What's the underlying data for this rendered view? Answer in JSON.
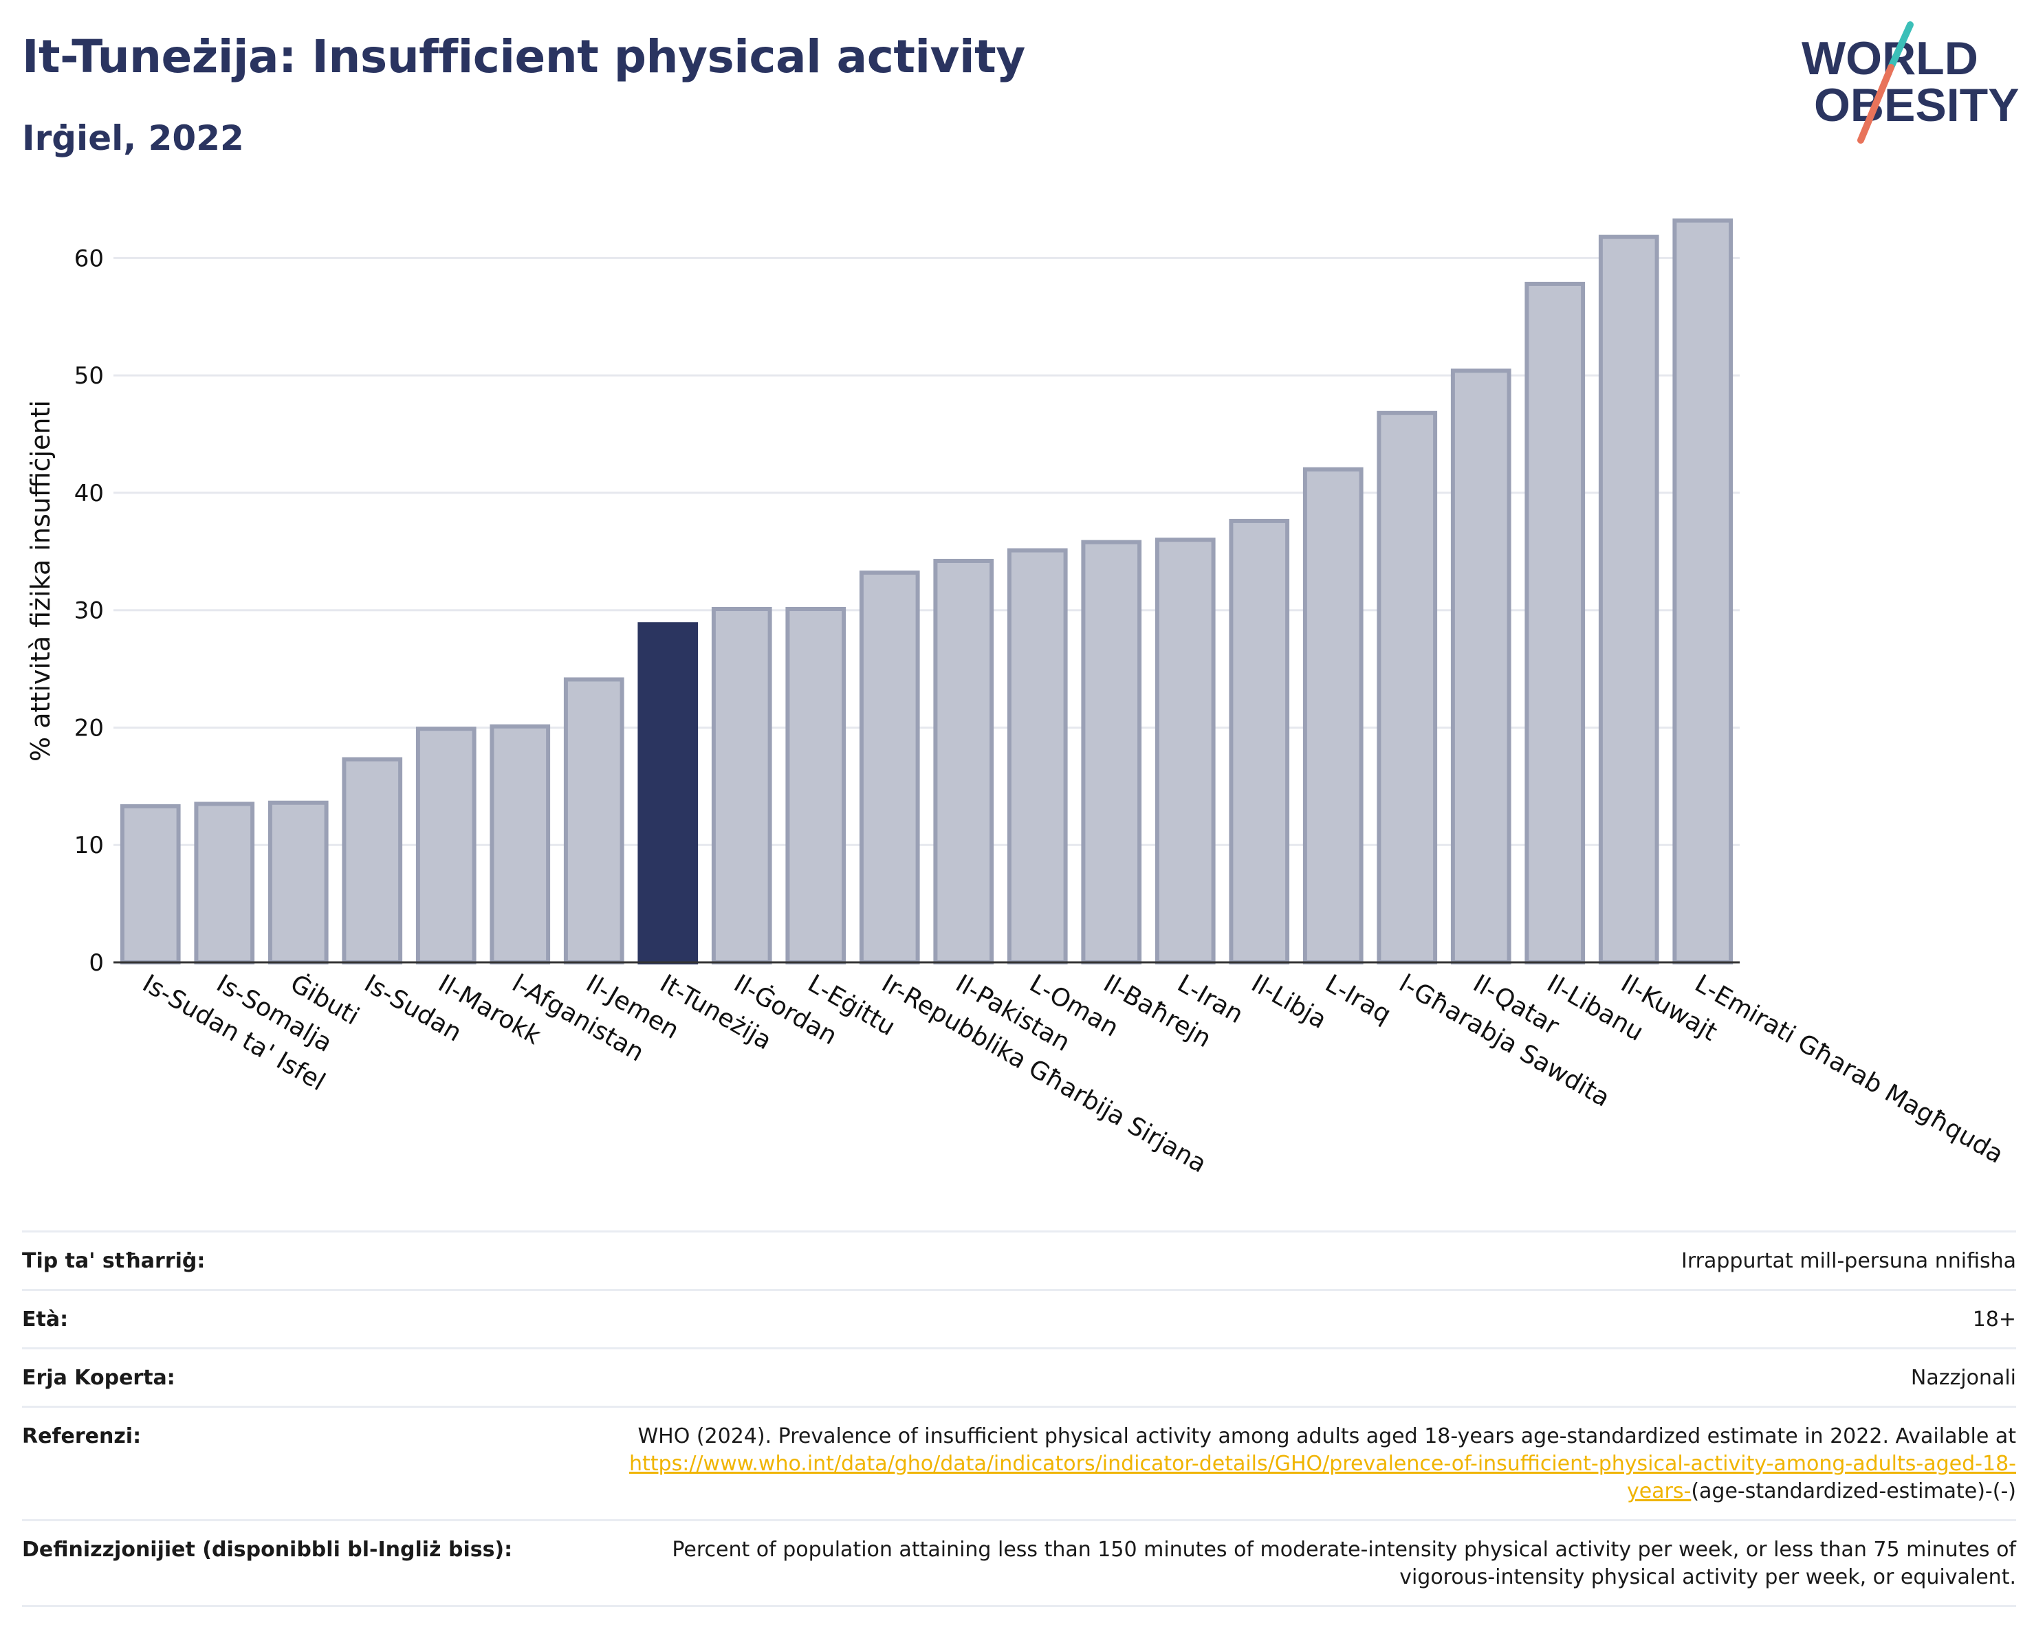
{
  "header": {
    "title": "It-Tuneżija: Insufficient physical activity",
    "subtitle": "Irġiel, 2022",
    "logo_line1": "WORLD",
    "logo_line2": "OBESITY"
  },
  "colors": {
    "highlight": "#2b3560",
    "bar": "#bfc3d0",
    "bar_edge": "#9aa0b5",
    "logo_navy": "#2b3560",
    "logo_teal": "#3bbfb8",
    "logo_coral": "#e8735a",
    "link": "#f0b400"
  },
  "chart_data": {
    "type": "bar",
    "ylabel": "% attività fiżika insuffiċjenti",
    "xlabel": "",
    "ylim": [
      0,
      65
    ],
    "yticks": [
      0,
      10,
      20,
      30,
      40,
      50,
      60
    ],
    "grid": true,
    "highlight_category": "It-Tuneżija",
    "categories": [
      "Is-Sudan ta' Isfel",
      "Is-Somalja",
      "Ġibuti",
      "Is-Sudan",
      "Il-Marokk",
      "l-Afganistan",
      "Il-Jemen",
      "It-Tuneżija",
      "Il-Ġordan",
      "L-Eġittu",
      "Ir-Repubblika Għarbija Sirjana",
      "Il-Pakistan",
      "L-Oman",
      "Il-Baħrejn",
      "L-Iran",
      "Il-Libja",
      "L-Iraq",
      "l-Għarabja Sawdita",
      "Il-Qatar",
      "Il-Libanu",
      "Il-Kuwajt",
      "L-Emirati Għarab Magħquda"
    ],
    "values": [
      13.3,
      13.5,
      13.6,
      17.3,
      19.9,
      20.1,
      24.1,
      28.8,
      30.1,
      30.1,
      33.2,
      34.2,
      35.1,
      35.8,
      36.0,
      37.6,
      42.0,
      46.8,
      50.4,
      57.8,
      61.8,
      63.2
    ]
  },
  "meta": [
    {
      "label": "Tip ta' stħarriġ:",
      "value": "Irrappurtat mill-persuna nnifisha"
    },
    {
      "label": "Età:",
      "value": "18+"
    },
    {
      "label": "Erja Koperta:",
      "value": "Nazzjonali"
    },
    {
      "label": "Referenzi:",
      "value": "WHO (2024). Prevalence of insufficient physical activity among adults aged 18-years age-standardized estimate in 2022. Available at",
      "link": "https://www.who.int/data/gho/data/indicators/indicator-details/GHO/prevalence-of-insufficient-physical-activity-among-adults-aged-18-years-",
      "suffix": "(age-standardized-estimate)-(-)"
    },
    {
      "label": "Definizzjonijiet (disponibbli bl-Ingliż biss):",
      "value": "Percent of population attaining less than 150 minutes of moderate-intensity physical activity per week, or less than 75 minutes of vigorous-intensity physical activity per week, or equivalent."
    }
  ]
}
